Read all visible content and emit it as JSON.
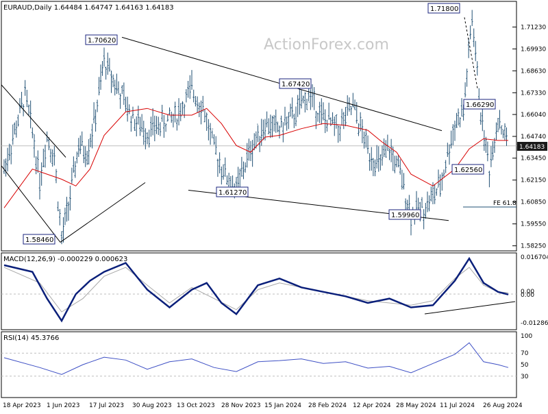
{
  "chart_data": {
    "type": "ohlc",
    "watermark": "ActionForex.com",
    "main": {
      "title": "EURAUD,Daily  1.64484 1.64747 1.64163 1.64183",
      "yticks": [
        "1.71230",
        "1.69930",
        "1.68630",
        "1.67330",
        "1.66040",
        "1.64740",
        "1.63450",
        "1.62150",
        "1.60850",
        "1.59550",
        "1.58250"
      ],
      "ylim": [
        1.5795,
        1.7275
      ],
      "last_price": "1.64183",
      "callouts": [
        {
          "label": "1.70620",
          "value": 1.7062
        },
        {
          "label": "1.71800",
          "value": 1.718
        },
        {
          "label": "1.67420",
          "value": 1.6742
        },
        {
          "label": "1.66290",
          "value": 1.6629
        },
        {
          "label": "1.61270",
          "value": 1.6127
        },
        {
          "label": "1.62560",
          "value": 1.6256
        },
        {
          "label": "1.59960",
          "value": 1.5996
        },
        {
          "label": "1.58460",
          "value": 1.5846
        }
      ],
      "fe_label": "FE 61.8",
      "fe_value": 1.6055
    },
    "macd": {
      "title": "MACD(12,26,9) -0.000229 0.000623",
      "yticks": [
        "0.016704",
        "0.00",
        "0.00",
        "-0.012869"
      ],
      "ylim": [
        -0.016,
        0.0185
      ]
    },
    "rsi": {
      "title": "RSI(14) 45.3766",
      "yticks": [
        "100",
        "70",
        "50",
        "30"
      ],
      "ylim": [
        0,
        100
      ]
    },
    "x_labels": [
      "18 Apr 2023",
      "1 Jun 2023",
      "17 Jul 2023",
      "30 Aug 2023",
      "13 Oct 2023",
      "28 Nov 2023",
      "15 Jan 2024",
      "28 Feb 2024",
      "12 Apr 2024",
      "28 May 2024",
      "11 Jul 2024",
      "26 Aug 2024"
    ],
    "price_path": [
      {
        "date": "18 Apr 2023",
        "value": 1.628
      },
      {
        "date": "",
        "value": 1.672
      },
      {
        "date": "",
        "value": 1.65
      },
      {
        "date": "",
        "value": 1.622
      },
      {
        "date": "",
        "value": 1.648
      },
      {
        "date": "",
        "value": 1.635
      },
      {
        "date": "1 Jun 2023",
        "value": 1.586
      },
      {
        "date": "",
        "value": 1.612
      },
      {
        "date": "",
        "value": 1.642
      },
      {
        "date": "",
        "value": 1.638
      },
      {
        "date": "",
        "value": 1.66
      },
      {
        "date": "17 Jul 2023",
        "value": 1.692
      },
      {
        "date": "",
        "value": 1.675
      },
      {
        "date": "",
        "value": 1.658
      },
      {
        "date": "30 Aug 2023",
        "value": 1.65
      },
      {
        "date": "",
        "value": 1.655
      },
      {
        "date": "",
        "value": 1.66
      },
      {
        "date": "13 Oct 2023",
        "value": 1.675
      },
      {
        "date": "",
        "value": 1.665
      },
      {
        "date": "",
        "value": 1.64
      },
      {
        "date": "",
        "value": 1.625
      },
      {
        "date": "28 Nov 2023",
        "value": 1.616
      },
      {
        "date": "",
        "value": 1.64
      },
      {
        "date": "",
        "value": 1.655
      },
      {
        "date": "15 Jan 2024",
        "value": 1.652
      },
      {
        "date": "",
        "value": 1.66
      },
      {
        "date": "",
        "value": 1.672
      },
      {
        "date": "28 Feb 2024",
        "value": 1.658
      },
      {
        "date": "",
        "value": 1.652
      },
      {
        "date": "",
        "value": 1.665
      },
      {
        "date": "12 Apr 2024",
        "value": 1.64
      },
      {
        "date": "",
        "value": 1.63
      },
      {
        "date": "",
        "value": 1.64
      },
      {
        "date": "",
        "value": 1.625
      },
      {
        "date": "28 May 2024",
        "value": 1.601
      },
      {
        "date": "",
        "value": 1.606
      },
      {
        "date": "",
        "value": 1.618
      },
      {
        "date": "11 Jul 2024",
        "value": 1.655
      },
      {
        "date": "",
        "value": 1.662
      },
      {
        "date": "",
        "value": 1.718
      },
      {
        "date": "",
        "value": 1.662
      },
      {
        "date": "",
        "value": 1.628
      },
      {
        "date": "26 Aug 2024",
        "value": 1.659
      },
      {
        "date": "",
        "value": 1.642
      }
    ],
    "ma_path": [
      {
        "date": "18 Apr 2023",
        "value": 1.605
      },
      {
        "date": "",
        "value": 1.628
      },
      {
        "date": "",
        "value": 1.625
      },
      {
        "date": "1 Jun 2023",
        "value": 1.622
      },
      {
        "date": "",
        "value": 1.618
      },
      {
        "date": "",
        "value": 1.628
      },
      {
        "date": "17 Jul 2023",
        "value": 1.648
      },
      {
        "date": "",
        "value": 1.662
      },
      {
        "date": "30 Aug 2023",
        "value": 1.664
      },
      {
        "date": "",
        "value": 1.66
      },
      {
        "date": "13 Oct 2023",
        "value": 1.66
      },
      {
        "date": "",
        "value": 1.664
      },
      {
        "date": "",
        "value": 1.655
      },
      {
        "date": "28 Nov 2023",
        "value": 1.642
      },
      {
        "date": "",
        "value": 1.638
      },
      {
        "date": "",
        "value": 1.647
      },
      {
        "date": "15 Jan 2024",
        "value": 1.648
      },
      {
        "date": "",
        "value": 1.652
      },
      {
        "date": "28 Feb 2024",
        "value": 1.655
      },
      {
        "date": "",
        "value": 1.654
      },
      {
        "date": "12 Apr 2024",
        "value": 1.651
      },
      {
        "date": "",
        "value": 1.644
      },
      {
        "date": "",
        "value": 1.638
      },
      {
        "date": "28 May 2024",
        "value": 1.625
      },
      {
        "date": "",
        "value": 1.618
      },
      {
        "date": "11 Jul 2024",
        "value": 1.628
      },
      {
        "date": "",
        "value": 1.64
      },
      {
        "date": "",
        "value": 1.646
      },
      {
        "date": "26 Aug 2024",
        "value": 1.645
      },
      {
        "date": "",
        "value": 1.645
      }
    ],
    "macd_path": [
      {
        "date": "18 Apr 2023",
        "value": 0.013
      },
      {
        "date": "",
        "value": 0.01
      },
      {
        "date": "",
        "value": -0.002
      },
      {
        "date": "1 Jun 2023",
        "value": -0.012
      },
      {
        "date": "",
        "value": 0.0
      },
      {
        "date": "",
        "value": 0.006
      },
      {
        "date": "17 Jul 2023",
        "value": 0.01
      },
      {
        "date": "",
        "value": 0.014
      },
      {
        "date": "30 Aug 2023",
        "value": 0.002
      },
      {
        "date": "",
        "value": -0.006
      },
      {
        "date": "13 Oct 2023",
        "value": 0.002
      },
      {
        "date": "",
        "value": 0.005
      },
      {
        "date": "",
        "value": -0.004
      },
      {
        "date": "28 Nov 2023",
        "value": -0.009
      },
      {
        "date": "",
        "value": 0.004
      },
      {
        "date": "15 Jan 2024",
        "value": 0.007
      },
      {
        "date": "",
        "value": 0.003
      },
      {
        "date": "28 Feb 2024",
        "value": 0.001
      },
      {
        "date": "",
        "value": -0.001
      },
      {
        "date": "12 Apr 2024",
        "value": -0.004
      },
      {
        "date": "",
        "value": -0.002
      },
      {
        "date": "28 May 2024",
        "value": -0.006
      },
      {
        "date": "",
        "value": -0.005
      },
      {
        "date": "11 Jul 2024",
        "value": 0.006
      },
      {
        "date": "",
        "value": 0.016
      },
      {
        "date": "",
        "value": 0.005
      },
      {
        "date": "26 Aug 2024",
        "value": 0.001
      },
      {
        "date": "",
        "value": -0.0002
      }
    ],
    "signal_path": [
      {
        "date": "18 Apr 2023",
        "value": 0.012
      },
      {
        "date": "",
        "value": 0.005
      },
      {
        "date": "1 Jun 2023",
        "value": -0.008
      },
      {
        "date": "",
        "value": -0.002
      },
      {
        "date": "17 Jul 2023",
        "value": 0.008
      },
      {
        "date": "",
        "value": 0.012
      },
      {
        "date": "30 Aug 2023",
        "value": 0.004
      },
      {
        "date": "",
        "value": -0.004
      },
      {
        "date": "13 Oct 2023",
        "value": 0.003
      },
      {
        "date": "",
        "value": -0.002
      },
      {
        "date": "28 Nov 2023",
        "value": -0.007
      },
      {
        "date": "",
        "value": 0.002
      },
      {
        "date": "15 Jan 2024",
        "value": 0.005
      },
      {
        "date": "28 Feb 2024",
        "value": 0.001
      },
      {
        "date": "12 Apr 2024",
        "value": -0.003
      },
      {
        "date": "28 May 2024",
        "value": -0.005
      },
      {
        "date": "",
        "value": -0.003
      },
      {
        "date": "11 Jul 2024",
        "value": 0.007
      },
      {
        "date": "",
        "value": 0.012
      },
      {
        "date": "",
        "value": 0.004
      },
      {
        "date": "26 Aug 2024",
        "value": 0.001
      },
      {
        "date": "",
        "value": 0.0006
      }
    ],
    "rsi_path": [
      {
        "date": "18 Apr 2023",
        "value": 62
      },
      {
        "date": "",
        "value": 45
      },
      {
        "date": "1 Jun 2023",
        "value": 33
      },
      {
        "date": "",
        "value": 50
      },
      {
        "date": "17 Jul 2023",
        "value": 63
      },
      {
        "date": "",
        "value": 58
      },
      {
        "date": "30 Aug 2023",
        "value": 42
      },
      {
        "date": "",
        "value": 55
      },
      {
        "date": "13 Oct 2023",
        "value": 60
      },
      {
        "date": "",
        "value": 45
      },
      {
        "date": "28 Nov 2023",
        "value": 38
      },
      {
        "date": "",
        "value": 55
      },
      {
        "date": "15 Jan 2024",
        "value": 57
      },
      {
        "date": "",
        "value": 60
      },
      {
        "date": "28 Feb 2024",
        "value": 52
      },
      {
        "date": "",
        "value": 55
      },
      {
        "date": "12 Apr 2024",
        "value": 44
      },
      {
        "date": "",
        "value": 47
      },
      {
        "date": "28 May 2024",
        "value": 36
      },
      {
        "date": "",
        "value": 52
      },
      {
        "date": "11 Jul 2024",
        "value": 68
      },
      {
        "date": "",
        "value": 88
      },
      {
        "date": "",
        "value": 55
      },
      {
        "date": "26 Aug 2024",
        "value": 50
      },
      {
        "date": "",
        "value": 45
      }
    ],
    "trendlines": [
      {
        "name": "upper-falling-trendline",
        "from": {
          "date": "17 Jul 2023",
          "value": 1.7062
        },
        "to": {
          "date": "11 Jul 2024",
          "value": 1.6508
        }
      },
      {
        "name": "lower-falling-trendline",
        "from": {
          "date": "13 Oct 2023",
          "value": 1.6155
        },
        "to": {
          "date": "28 May 2024",
          "value": 1.5975
        }
      },
      {
        "name": "support-rising-trendline",
        "from": {
          "date": "1 Jun 2023",
          "value": 1.5846
        },
        "to": {
          "date": "30 Aug 2023",
          "value": 1.62
        }
      }
    ],
    "colors": {
      "bars": "#1f4f73",
      "ma": "#d80000",
      "macd": "#0a1f7a",
      "signal": "#a8a8a8",
      "rsi": "#3c4ec4",
      "callout_border": "#1a237e",
      "grid": "#bdbdbd"
    }
  }
}
